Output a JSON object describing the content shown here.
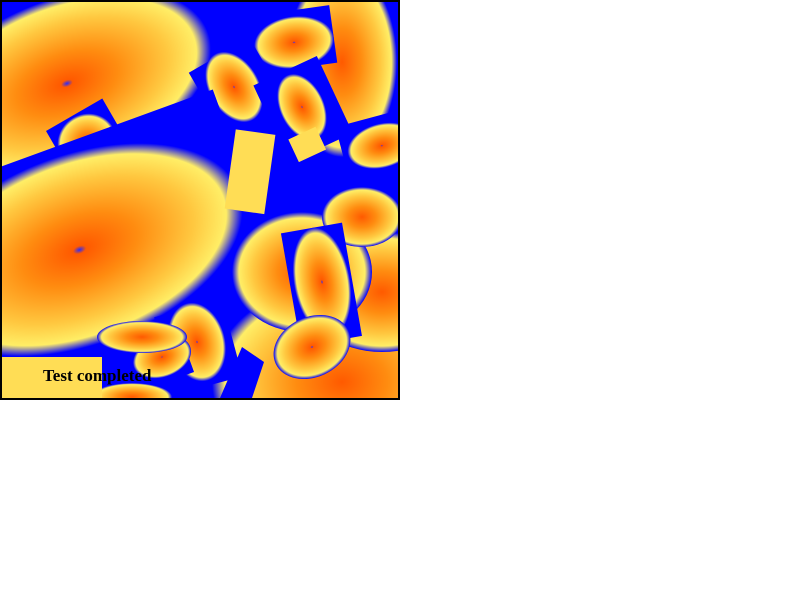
{
  "canvas": {
    "background_color": "#0000ff",
    "border_color": "#000000",
    "gradient_colors": {
      "edge": "#ffff66",
      "mid": "#ffa500",
      "inner": "#ff6600",
      "core": "#3333ff"
    }
  },
  "status": {
    "text": "Test completed"
  }
}
